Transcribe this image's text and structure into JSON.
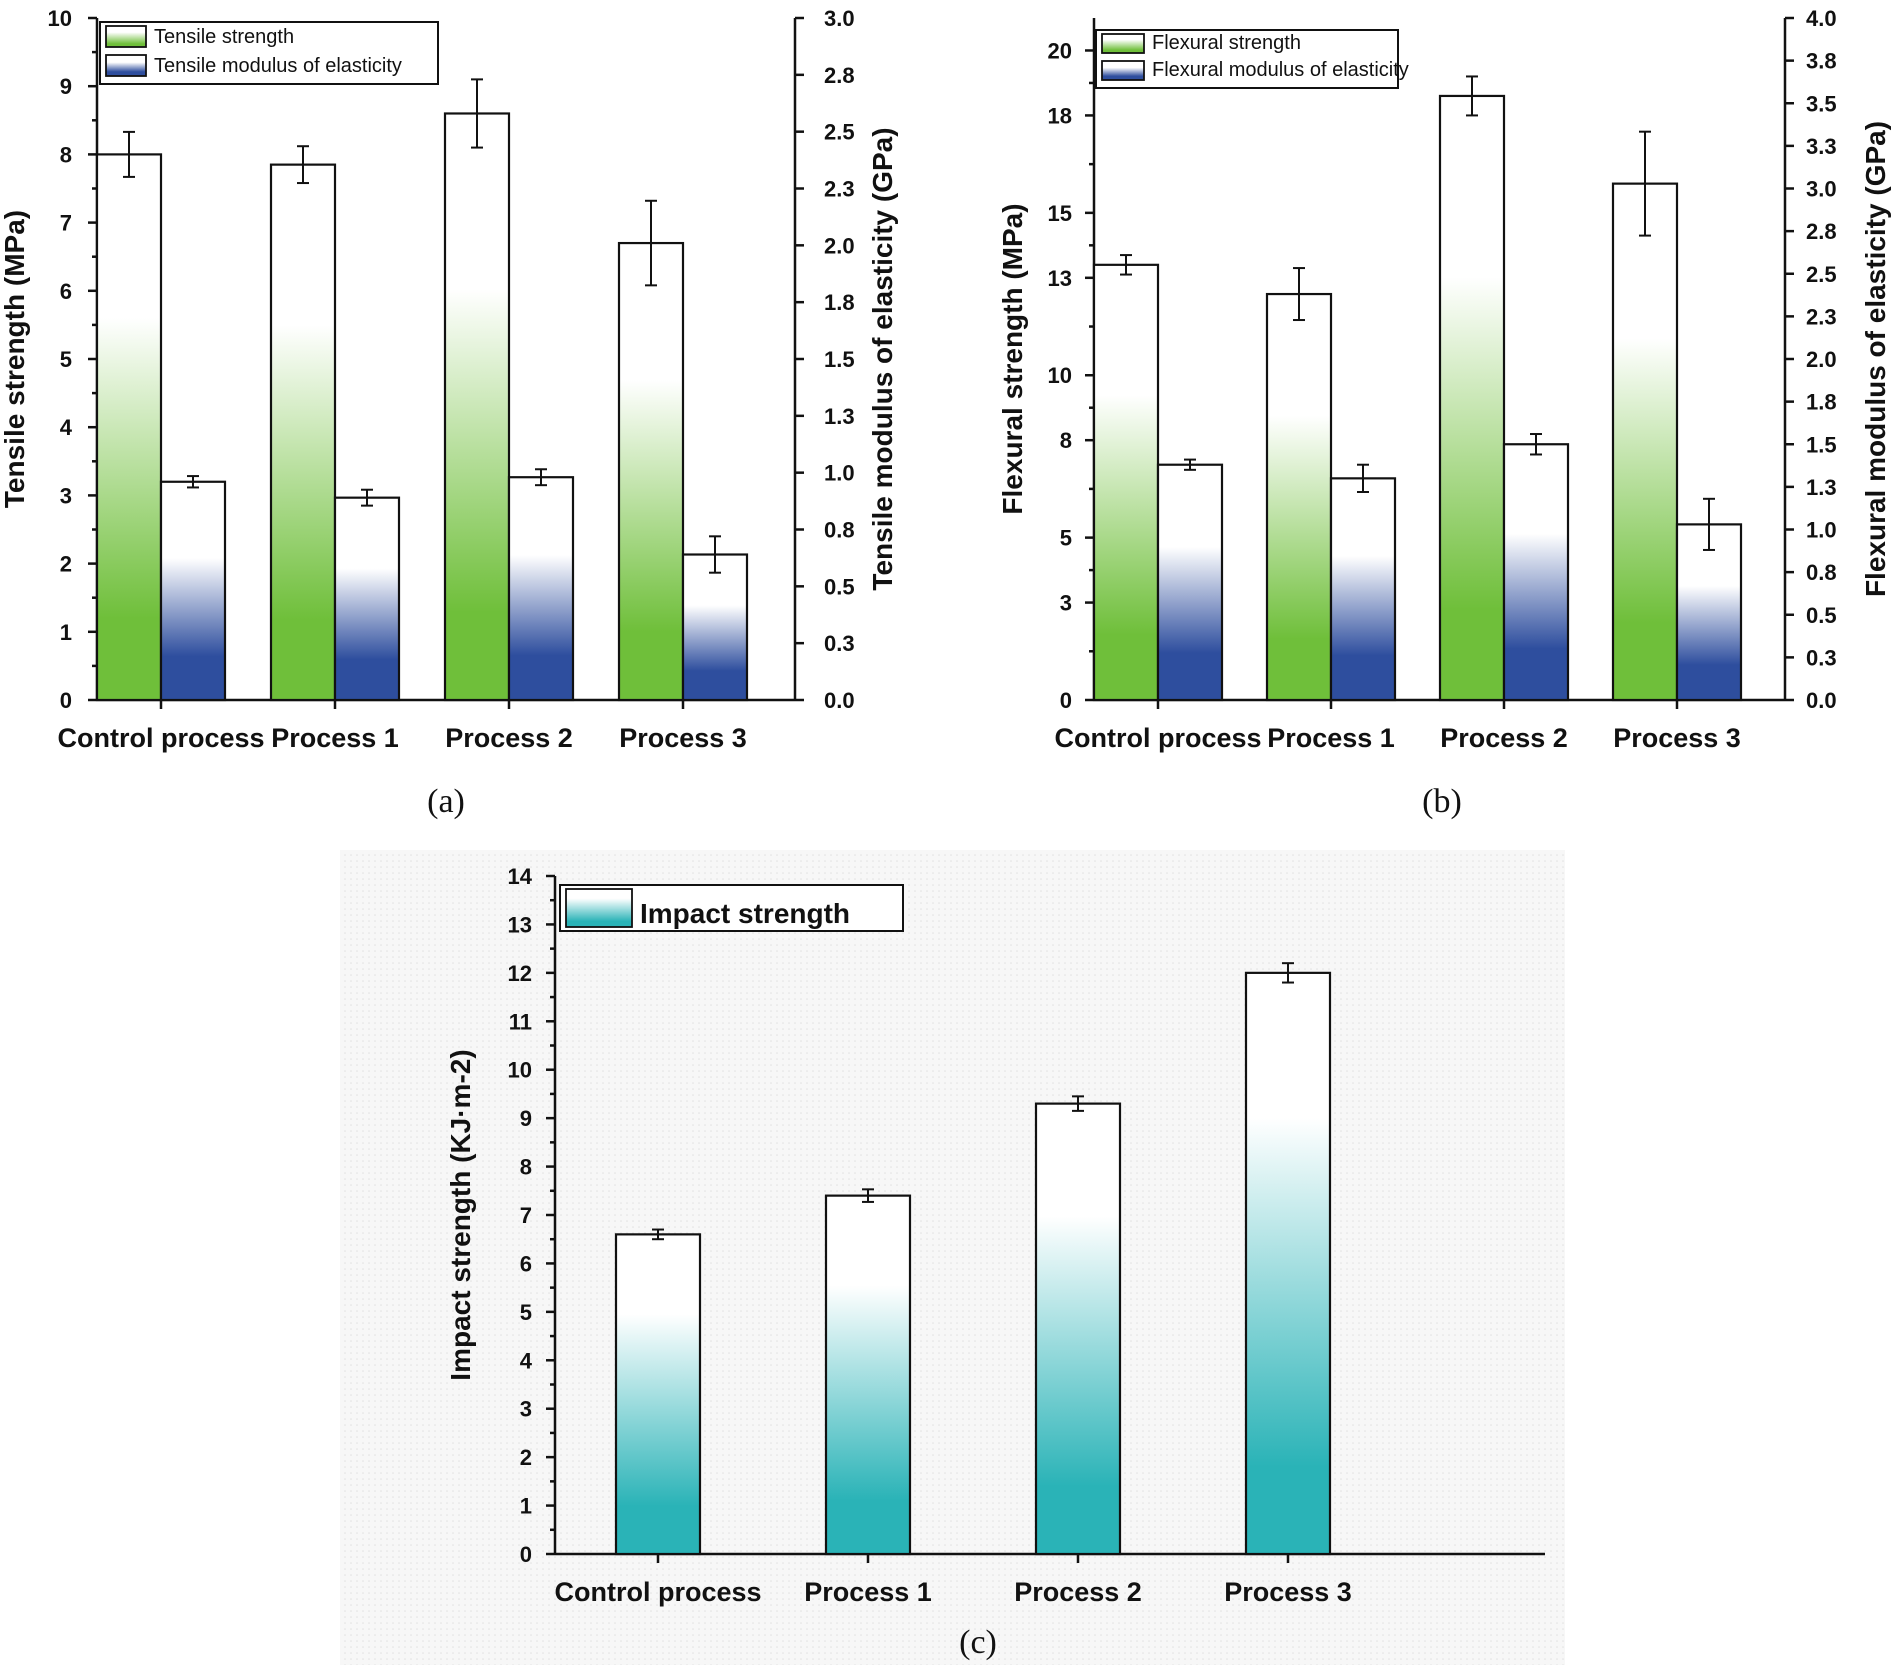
{
  "colors": {
    "green": "#6fbf3a",
    "blue": "#2e4e9e",
    "teal": "#2ab3b7",
    "axis": "#111111"
  },
  "chart_data": [
    {
      "id": "a",
      "type": "bar",
      "panel_label": "(a)",
      "categories": [
        "Control process",
        "Process 1",
        "Process 2",
        "Process 3"
      ],
      "left_axis": {
        "label": "Tensile strength (MPa)",
        "ylim": [
          0,
          10
        ],
        "ticks": [
          "0",
          "1",
          "2",
          "3",
          "4",
          "5",
          "6",
          "7",
          "8",
          "9",
          "10"
        ]
      },
      "right_axis": {
        "label": "Tensile modulus of elasticity (GPa)",
        "ylim": [
          0,
          3.0
        ],
        "ticks": [
          "0.0",
          "0.3",
          "0.5",
          "0.8",
          "1.0",
          "1.3",
          "1.5",
          "1.8",
          "2.0",
          "2.3",
          "2.5",
          "2.8",
          "3.0"
        ]
      },
      "series": [
        {
          "name": "Tensile strength",
          "axis": "left",
          "color": "green",
          "values": [
            8.0,
            7.85,
            8.6,
            6.7
          ],
          "errors": [
            0.33,
            0.27,
            0.5,
            0.62
          ]
        },
        {
          "name": "Tensile modulus of elasticity",
          "axis": "right",
          "color": "blue",
          "values": [
            0.96,
            0.89,
            0.98,
            0.64
          ],
          "errors": [
            0.025,
            0.035,
            0.035,
            0.08
          ]
        }
      ],
      "legend": "top-left"
    },
    {
      "id": "b",
      "type": "bar",
      "panel_label": "(b)",
      "categories": [
        "Control process",
        "Process 1",
        "Process 2",
        "Process 3"
      ],
      "left_axis": {
        "label": "Flexural strength (MPa)",
        "ylim": [
          0,
          21
        ],
        "ticks": [
          "0",
          "3",
          "5",
          "8",
          "10",
          "13",
          "15",
          "18",
          "20"
        ]
      },
      "right_axis": {
        "label": "Flexural modulus of elasticity (GPa)",
        "ylim": [
          0,
          4.0
        ],
        "ticks": [
          "0.0",
          "0.3",
          "0.5",
          "0.8",
          "1.0",
          "1.3",
          "1.5",
          "1.8",
          "2.0",
          "2.3",
          "2.5",
          "2.8",
          "3.0",
          "3.3",
          "3.5",
          "3.8",
          "4.0"
        ]
      },
      "series": [
        {
          "name": "Flexural strength",
          "axis": "left",
          "color": "green",
          "values": [
            13.4,
            12.5,
            18.6,
            15.9
          ],
          "errors": [
            0.3,
            0.8,
            0.6,
            1.6
          ]
        },
        {
          "name": "Flexural modulus of elasticity",
          "axis": "right",
          "color": "blue",
          "values": [
            1.38,
            1.3,
            1.5,
            1.03
          ],
          "errors": [
            0.03,
            0.08,
            0.06,
            0.15
          ]
        }
      ],
      "legend": "top-left"
    },
    {
      "id": "c",
      "type": "bar",
      "panel_label": "(c)",
      "categories": [
        "Control process",
        "Process 1",
        "Process 2",
        "Process 3"
      ],
      "left_axis": {
        "label": "Impact strength (KJ·m-2)",
        "ylim": [
          0,
          14
        ],
        "ticks": [
          "0",
          "1",
          "2",
          "3",
          "4",
          "5",
          "6",
          "7",
          "8",
          "9",
          "10",
          "11",
          "12",
          "13",
          "14"
        ]
      },
      "series": [
        {
          "name": "Impact strength",
          "axis": "left",
          "color": "teal",
          "values": [
            6.6,
            7.4,
            9.3,
            12.0
          ],
          "errors": [
            0.1,
            0.13,
            0.15,
            0.2
          ]
        }
      ],
      "legend": "top-left"
    }
  ]
}
